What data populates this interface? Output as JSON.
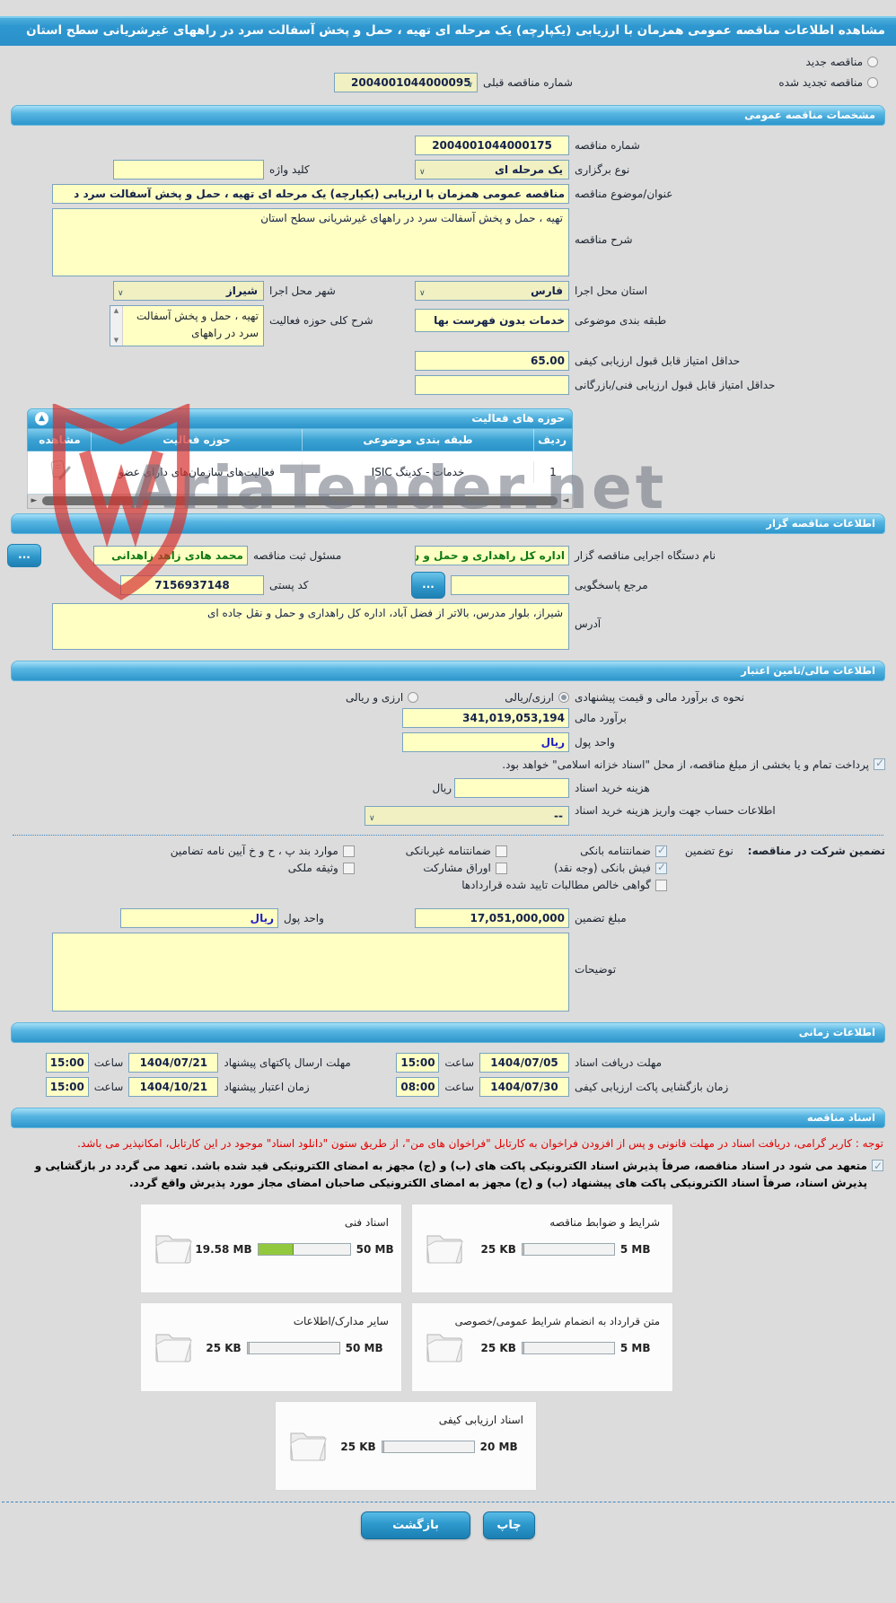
{
  "page": {
    "title": "مشاهده اطلاعات مناقصه عمومی همزمان با ارزیابی (یکپارچه) یک مرحله ای تهیه ، حمل و پخش آسفالت سرد در راههای غیرشریانی سطح استان"
  },
  "watermark": "AriaTender.net",
  "top": {
    "radio_new": "مناقصه جدید",
    "radio_renewed": "مناقصه تجدید شده",
    "prev_number_label": "شماره مناقصه قبلی",
    "prev_number_value": "2004001044000095"
  },
  "sections": {
    "general": "مشخصات مناقصه عمومی",
    "gozaar": "اطلاعات مناقصه گزار",
    "financial": "اطلاعات مالی/تامین اعتبار",
    "timing": "اطلاعات زمانی",
    "documents": "اسناد مناقصه"
  },
  "general": {
    "tender_no_label": "شماره مناقصه",
    "tender_no": "2004001044000175",
    "type_label": "نوع برگزاری",
    "type_value": "یک مرحله ای",
    "keyword_label": "کلید واژه",
    "keyword_value": "",
    "title_label": "عنوان/موضوع مناقصه",
    "title_value": "مناقصه عمومی همزمان با ارزیابی (یکپارچه) یک مرحله ای تهیه ، حمل و پخش آسفالت سرد د",
    "desc_label": "شرح مناقصه",
    "desc_value": "تهیه ، حمل و پخش آسفالت سرد در راههای غیرشریانی سطح استان",
    "province_label": "استان محل اجرا",
    "province_value": "فارس",
    "city_label": "شهر محل اجرا",
    "city_value": "شیراز",
    "category_label": "طبقه بندی موضوعی",
    "category_value": "خدمات بدون فهرست بها",
    "activity_desc_label": "شرح کلی حوزه فعالیت",
    "activity_desc_value": "تهیه ، حمل و پخش آسفالت سرد در راههای",
    "min_quality_label": "حداقل امتیاز قابل قبول ارزیابی کیفی",
    "min_quality_value": "65.00",
    "min_tech_label": "حداقل امتیاز قابل قبول ارزیابی فنی/بازرگانی",
    "min_tech_value": ""
  },
  "activity_table": {
    "title": "حوزه های فعالیت",
    "headers": {
      "index": "ردیف",
      "category": "طبقه بندی موضوعی",
      "activity": "حوزه فعالیت",
      "view": "مشاهده"
    },
    "rows": [
      {
        "index": "1",
        "category": "خدمات - کدینگ ISIC",
        "activity": "فعالیت‌های سازمان‌های دارای عضو"
      }
    ]
  },
  "gozaar": {
    "agency_label": "نام دستگاه اجرایی مناقصه گزار",
    "agency_value": "اداره کل راهداری و حمل و ن",
    "registrar_label": "مسئول ثبت مناقصه",
    "registrar_value": "محمد هادی  زاهد زاهدانی",
    "browse_label": "...",
    "ref_label": "مرجع پاسخگویی",
    "ref_value": "",
    "postal_label": "کد پستی",
    "postal_value": "7156937148",
    "address_label": "آدرس",
    "address_value": "شیراز، بلوار مدرس، بالاتر از فضل آباد، اداره کل راهداری و حمل و نقل جاده ای"
  },
  "financial": {
    "method_label": "نحوه ی برآورد مالی و قیمت پیشنهادی",
    "method_options": [
      {
        "label": "ارزی/ریالی",
        "selected": true
      },
      {
        "label": "ارزی و ریالی",
        "selected": false
      }
    ],
    "estimate_label": "برآورد مالی",
    "estimate_value": "341,019,053,194",
    "currency_label": "واحد پول",
    "currency_value": "ریال",
    "treasury_note": "پرداخت تمام و یا بخشی از مبلغ مناقصه، از محل \"اسناد خزانه اسلامی\" خواهد بود.",
    "doc_fee_label": "هزینه خرید اسناد",
    "doc_fee_value": "",
    "doc_fee_unit": "ریال",
    "account_label": "اطلاعات حساب جهت واریز هزینه خرید اسناد",
    "account_value": "--",
    "guarantee_label": "تضمین شرکت در مناقصه:",
    "guarantee_type_label": "نوع تضمین",
    "guarantee_types": [
      {
        "label": "ضمانتنامه بانکی",
        "checked": true
      },
      {
        "label": "ضمانتنامه غیربانکی",
        "checked": false
      },
      {
        "label": "موارد بند پ ، ح و خ آیین نامه تضامین",
        "checked": false
      },
      {
        "label": "فیش بانکی (وجه نقد)",
        "checked": true
      },
      {
        "label": "اوراق مشارکت",
        "checked": false
      },
      {
        "label": "وثیقه ملکی",
        "checked": false
      },
      {
        "label": "گواهی خالص مطالبات تایید شده قراردادها",
        "checked": false
      }
    ],
    "guarantee_amount_label": "مبلغ تضمین",
    "guarantee_amount_value": "17,051,000,000",
    "guarantee_currency_label": "واحد پول",
    "guarantee_currency_value": "ریال",
    "notes_label": "توضیحات",
    "notes_value": ""
  },
  "timing": {
    "time_word": "ساعت",
    "items": [
      {
        "label": "مهلت دریافت اسناد",
        "date": "1404/07/05",
        "time": "15:00"
      },
      {
        "label": "مهلت ارسال پاکتهای پیشنهاد",
        "date": "1404/07/21",
        "time": "15:00"
      },
      {
        "label": "زمان بازگشایی پاکت ارزیابی کیفی",
        "date": "1404/07/30",
        "time": "08:00"
      },
      {
        "label": "زمان اعتبار پیشنهاد",
        "date": "1404/10/21",
        "time": "15:00"
      }
    ]
  },
  "documents": {
    "notice": "توجه : کاربر گرامی، دریافت اسناد در مهلت قانونی و پس از افزودن فراخوان به کارتابل \"فراخوان های من\"، از طریق ستون \"دانلود اسناد\" موجود در این کارتابل، امکانپذیر می باشد.",
    "pledge": "متعهد می شود در اسناد مناقصه، صرفاً پذیرش اسناد الکترونیکی پاکت های (ب) و (ج) مجهز به امضای الکترونیکی قید شده باشد. تعهد می گردد در بازگشایی و پذیرش اسناد، صرفاً اسناد الکترونیکی پاکت های پیشنهاد (ب) و (ج) مجهز به امضای الکترونیکی صاحبان امضای مجاز مورد پذیرش واقع گردد.",
    "cards": [
      {
        "title": "شرایط و ضوابط مناقصه",
        "used": "25 KB",
        "capacity": "5 MB",
        "progress_pct": 0
      },
      {
        "title": "اسناد فنی",
        "used": "19.58 MB",
        "capacity": "50 MB",
        "progress_pct": 39
      },
      {
        "title": "متن قرارداد به انضمام شرایط عمومی/خصوصی",
        "used": "25 KB",
        "capacity": "5 MB",
        "progress_pct": 0
      },
      {
        "title": "سایر مدارک/اطلاعات",
        "used": "25 KB",
        "capacity": "50 MB",
        "progress_pct": 0
      },
      {
        "title": "اسناد ارزیابی کیفی",
        "used": "25 KB",
        "capacity": "20 MB",
        "progress_pct": 0
      }
    ]
  },
  "footer": {
    "back": "بازگشت",
    "print": "چاپ"
  }
}
